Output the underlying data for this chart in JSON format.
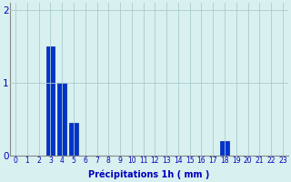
{
  "title": "",
  "xlabel": "Précipitations 1h ( mm )",
  "ylabel": "",
  "background_color": "#d8f0f0",
  "bar_color": "#0033cc",
  "bar_edge_color": "#0022aa",
  "x_labels": [
    "0",
    "1",
    "2",
    "3",
    "4",
    "5",
    "6",
    "7",
    "8",
    "9",
    "10",
    "11",
    "12",
    "13",
    "14",
    "15",
    "16",
    "17",
    "18",
    "19",
    "20",
    "21",
    "22",
    "23"
  ],
  "values": [
    0,
    0,
    0,
    1.5,
    1.0,
    0.45,
    0,
    0,
    0,
    0,
    0,
    0,
    0,
    0,
    0,
    0,
    0,
    0,
    0.2,
    0,
    0,
    0,
    0,
    0
  ],
  "ylim": [
    0,
    2.1
  ],
  "yticks": [
    0,
    1,
    2
  ],
  "xlim": [
    -0.5,
    23.5
  ],
  "grid_color": "#aacccc",
  "xlabel_fontsize": 7,
  "tick_fontsize": 5.5,
  "ytick_fontsize": 7.5
}
